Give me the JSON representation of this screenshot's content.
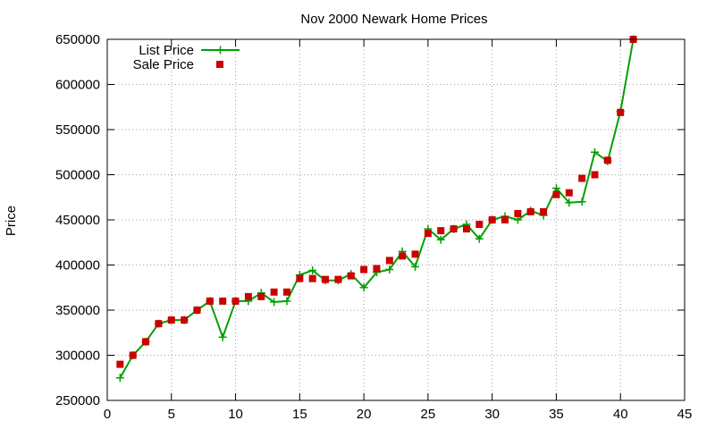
{
  "chart_data": {
    "type": "line",
    "title": "Nov 2000 Newark Home Prices",
    "xlabel": "",
    "ylabel": "Price",
    "xlim": [
      0,
      45
    ],
    "ylim": [
      250000,
      650000
    ],
    "x_ticks": [
      0,
      5,
      10,
      15,
      20,
      25,
      30,
      35,
      40,
      45
    ],
    "y_ticks": [
      250000,
      300000,
      350000,
      400000,
      450000,
      500000,
      550000,
      600000,
      650000
    ],
    "grid": true,
    "legend_position": "top-left",
    "series": [
      {
        "name": "List Price",
        "color": "#00a000",
        "style": "line with plus markers",
        "x": [
          1,
          2,
          3,
          4,
          5,
          6,
          7,
          8,
          9,
          10,
          11,
          12,
          13,
          14,
          15,
          16,
          17,
          18,
          19,
          20,
          21,
          22,
          23,
          24,
          25,
          26,
          27,
          28,
          29,
          30,
          31,
          32,
          33,
          34,
          35,
          36,
          37,
          38,
          39,
          40,
          41
        ],
        "values": [
          275000,
          300000,
          315000,
          335000,
          339000,
          339000,
          350000,
          360000,
          320000,
          360000,
          360000,
          369000,
          359000,
          360000,
          389000,
          394000,
          383000,
          383000,
          390000,
          375000,
          392000,
          395000,
          415000,
          398000,
          440000,
          428000,
          440000,
          445000,
          429000,
          450000,
          454000,
          450000,
          460000,
          455000,
          485000,
          469000,
          470000,
          525000,
          515000,
          570000,
          650000
        ]
      },
      {
        "name": "Sale Price",
        "color": "#cc0000",
        "style": "square markers",
        "x": [
          1,
          2,
          3,
          4,
          5,
          6,
          7,
          8,
          9,
          10,
          11,
          12,
          13,
          14,
          15,
          16,
          17,
          18,
          19,
          20,
          21,
          22,
          23,
          24,
          25,
          26,
          27,
          28,
          29,
          30,
          31,
          32,
          33,
          34,
          35,
          36,
          37,
          38,
          39,
          40,
          41
        ],
        "values": [
          290000,
          300000,
          315000,
          335000,
          339000,
          339000,
          350000,
          360000,
          360000,
          360000,
          365000,
          365000,
          370000,
          370000,
          385000,
          385000,
          384000,
          384000,
          388000,
          395000,
          396000,
          405000,
          410000,
          412000,
          435000,
          438000,
          440000,
          440000,
          445000,
          450000,
          450000,
          457000,
          459000,
          459000,
          478000,
          480000,
          496000,
          500000,
          516000,
          569000,
          650000
        ]
      }
    ]
  }
}
